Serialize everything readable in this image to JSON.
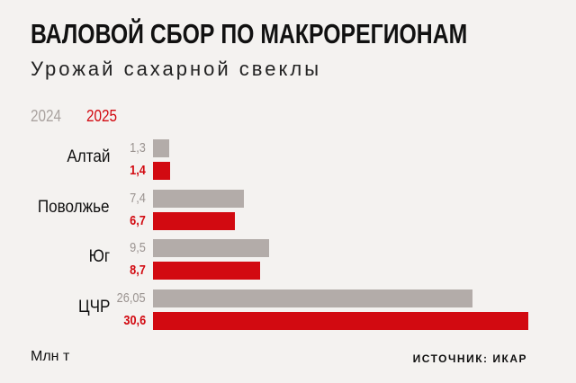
{
  "chart_data": {
    "type": "bar",
    "orientation": "horizontal",
    "title": "ВАЛОВОЙ СБОР ПО МАКРОРЕГИОНАМ",
    "subtitle": "Урожай сахарной свеклы",
    "categories": [
      "Алтай",
      "Поволжье",
      "Юг",
      "ЦЧР"
    ],
    "series": [
      {
        "name": "2024",
        "color": "#b3aca9",
        "values": [
          1.3,
          7.4,
          9.5,
          26.05
        ],
        "labels": [
          "1,3",
          "7,4",
          "9,5",
          "26,05"
        ]
      },
      {
        "name": "2025",
        "color": "#d20a11",
        "values": [
          1.4,
          6.7,
          8.7,
          30.6
        ],
        "labels": [
          "1,4",
          "6,7",
          "8,7",
          "30,6"
        ]
      }
    ],
    "unit": "Млн т",
    "source": "ИСТОЧНИК: ИКАР",
    "xlim": [
      0,
      30.6
    ]
  }
}
